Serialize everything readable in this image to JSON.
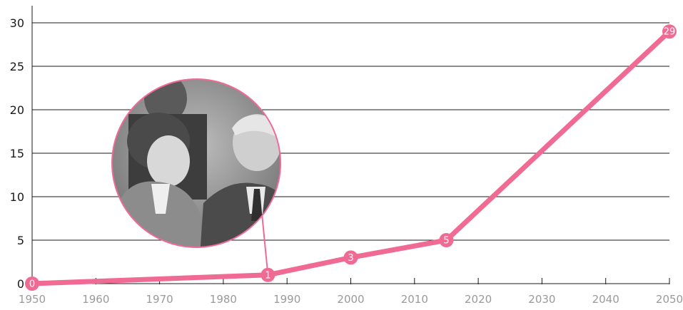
{
  "chart_data": {
    "type": "line",
    "title": "",
    "xlabel": "",
    "ylabel": "",
    "xlim": [
      1950,
      2050
    ],
    "ylim": [
      0,
      30
    ],
    "grid": true,
    "x_ticks": [
      "1950",
      "1960",
      "1970",
      "1980",
      "1990",
      "2000",
      "2010",
      "2020",
      "2030",
      "2040",
      "2050"
    ],
    "y_ticks": [
      "0",
      "5",
      "10",
      "15",
      "20",
      "25",
      "30"
    ],
    "series": [
      {
        "points": [
          {
            "x": 1950,
            "y": 0,
            "label": "0"
          },
          {
            "x": 1987,
            "y": 1,
            "label": "1"
          },
          {
            "x": 2000,
            "y": 3,
            "label": "3"
          },
          {
            "x": 2015,
            "y": 5,
            "label": "5"
          },
          {
            "x": 2050,
            "y": 29,
            "label": "29"
          }
        ]
      }
    ],
    "annotation": {
      "type": "photo-callout",
      "anchor_x": 1987,
      "anchor_y": 1
    },
    "colors": {
      "line": "#f06b93",
      "grid": "#1a1a1a",
      "ytick": "#1a1a1a",
      "xtick": "#9a9a9a"
    }
  }
}
